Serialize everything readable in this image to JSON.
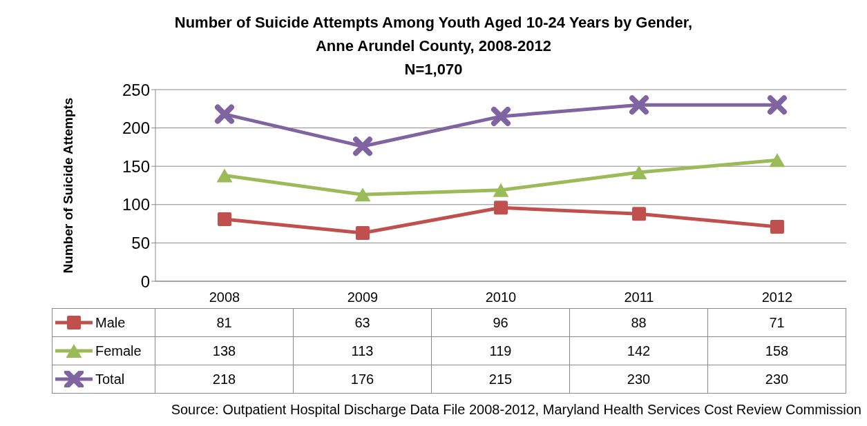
{
  "chart_data": {
    "type": "line",
    "title": "Number of Suicide Attempts Among Youth Aged 10-24 Years by Gender,\nAnne Arundel County, 2008-2012",
    "subtitle": "N=1,070",
    "ylabel": "Number of Suicide Attempts",
    "categories": [
      "2008",
      "2009",
      "2010",
      "2011",
      "2012"
    ],
    "series": [
      {
        "name": "Male",
        "color": "#c0504d",
        "marker": "square",
        "values": [
          81,
          63,
          96,
          88,
          71
        ]
      },
      {
        "name": "Female",
        "color": "#9bbb59",
        "marker": "triangle",
        "values": [
          138,
          113,
          119,
          142,
          158
        ]
      },
      {
        "name": "Total",
        "color": "#8064a2",
        "marker": "cross",
        "values": [
          218,
          176,
          215,
          230,
          230
        ]
      }
    ],
    "ylim": [
      0,
      250
    ],
    "yticks": [
      0,
      50,
      100,
      150,
      200,
      250
    ],
    "grid": "y",
    "legend": "bottom",
    "data_labels": true,
    "annotations": [
      "Source: Outpatient Hospital Discharge Data File 2008-2012, Maryland Health Services Cost Review  Commission"
    ]
  }
}
